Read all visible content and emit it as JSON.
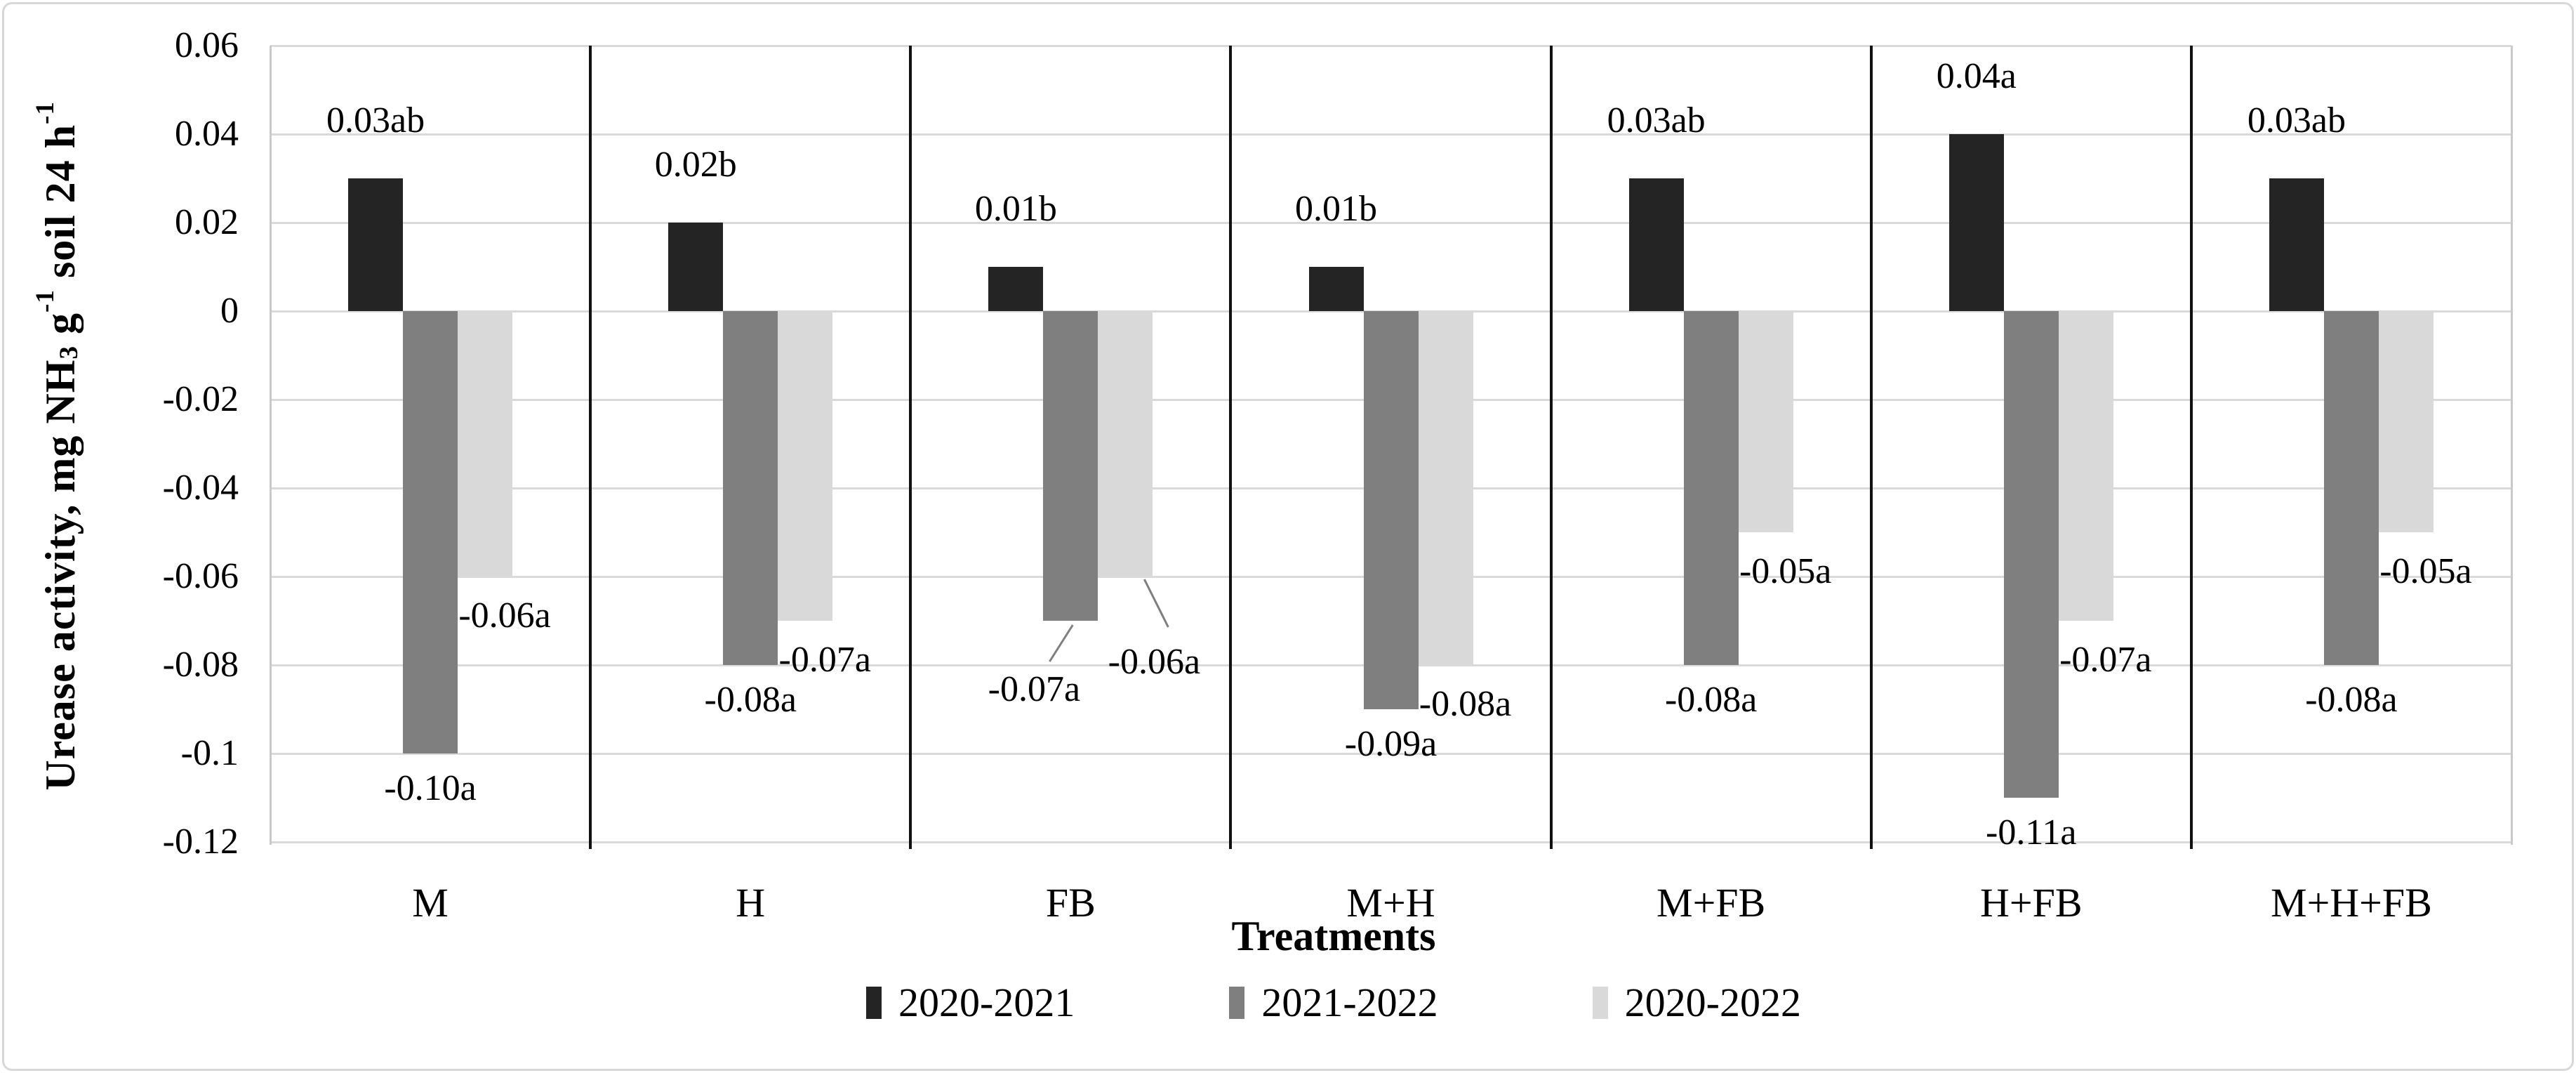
{
  "chart_data": {
    "type": "bar",
    "title": "",
    "xlabel": "Treatments",
    "ylabel": "Urease activity, mg NH3 g-1 soil 24 h-1",
    "ylabel_segments": [
      {
        "t": "Urease activity, mg NH"
      },
      {
        "t": "3",
        "style": "sub"
      },
      {
        "t": " g"
      },
      {
        "t": "-1",
        "style": "sup"
      },
      {
        "t": " soil 24 h"
      },
      {
        "t": "-1",
        "style": "sup"
      }
    ],
    "categories": [
      "M",
      "H",
      "FB",
      "M+H",
      "M+FB",
      "H+FB",
      "M+H+FB"
    ],
    "series": [
      {
        "name": "2020-2021",
        "color": "#242424",
        "values": [
          0.03,
          0.02,
          0.01,
          0.01,
          0.03,
          0.04,
          0.03
        ],
        "labels": [
          "0.03ab",
          "0.02b",
          "0.01b",
          "0.01b",
          "0.03ab",
          "0.04a",
          "0.03ab"
        ]
      },
      {
        "name": "2021-2022",
        "color": "#7f7f7f",
        "values": [
          -0.1,
          -0.08,
          -0.07,
          -0.09,
          -0.08,
          -0.11,
          -0.08
        ],
        "labels": [
          "-0.10a",
          "-0.08a",
          "-0.07a",
          "-0.09a",
          "-0.08a",
          "-0.11a",
          "-0.08a"
        ]
      },
      {
        "name": "2020-2022",
        "color": "#d9d9d9",
        "values": [
          -0.06,
          -0.07,
          -0.06,
          -0.08,
          -0.05,
          -0.07,
          -0.05
        ],
        "labels": [
          "-0.06a",
          "-0.07a",
          "-0.06a",
          "-0.08a",
          "-0.05a",
          "-0.07a",
          "-0.05a"
        ]
      }
    ],
    "y_ticks": [
      "0.06",
      "0.04",
      "0.02",
      "0",
      "-0.02",
      "-0.04",
      "-0.06",
      "-0.08",
      "-0.1",
      "-0.12"
    ],
    "ylim": [
      -0.12,
      0.06
    ],
    "grid": true,
    "legend_position": "bottom",
    "callout_category": "FB",
    "colors": {
      "gridline": "#dadada",
      "separator": "#111111",
      "axis_edge": "#c9c9c9",
      "leader_line": "#7f7f7f",
      "text": "#000000"
    }
  }
}
